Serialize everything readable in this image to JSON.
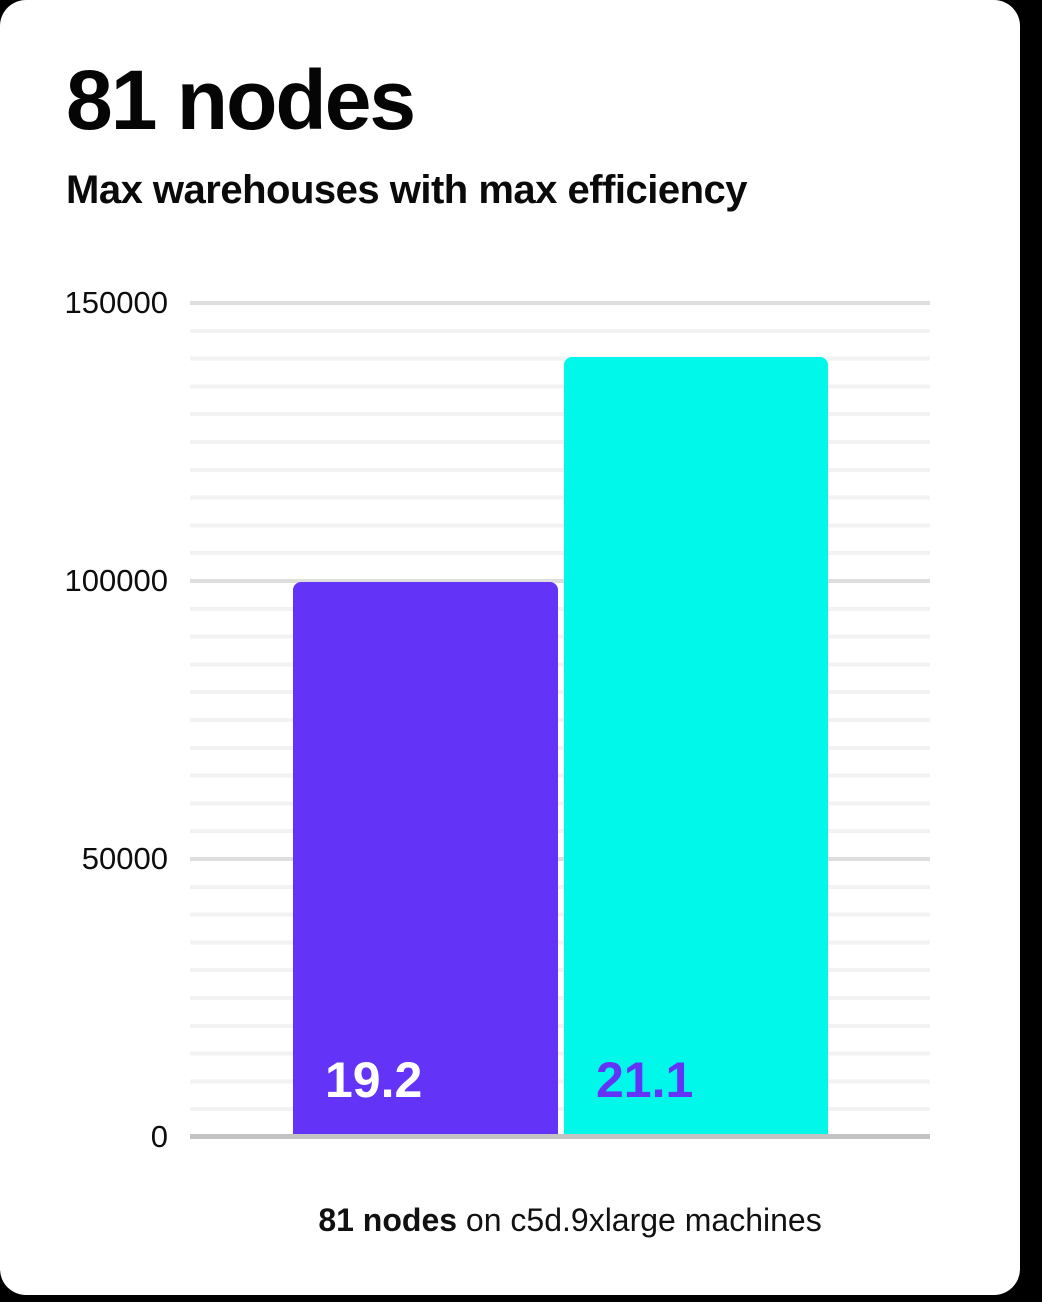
{
  "header": {
    "title": "81 nodes",
    "subtitle": "Max warehouses with max efficiency"
  },
  "chart_data": {
    "type": "bar",
    "title": "81 nodes",
    "subtitle": "Max warehouses with max efficiency",
    "bars": [
      {
        "label": "19.2",
        "value": 99500,
        "color": "#6433F8",
        "label_color": "#ffffff"
      },
      {
        "label": "21.1",
        "value": 140000,
        "color": "#00F8EB",
        "label_color": "#6433F8"
      }
    ],
    "ylim": [
      0,
      150000
    ],
    "yticks": [
      150000,
      100000,
      50000,
      0
    ],
    "ytick_labels": [
      "150000",
      "100000",
      "50000",
      "0"
    ],
    "minor_grid_step": 5000,
    "major_grid_step": 50000,
    "grid": true,
    "legend": false,
    "caption": "81 nodes on c5d.9xlarge machines"
  },
  "caption": {
    "bold": "81 nodes",
    "rest": " on c5d.9xlarge machines"
  },
  "colors": {
    "bar_purple": "#6433F8",
    "bar_cyan": "#00F8EB",
    "axis_line": "#c3c3c3",
    "major_grid": "#dedede",
    "minor_grid": "#f2f2f2",
    "card_background": "#ffffff",
    "page_background": "#000000"
  }
}
